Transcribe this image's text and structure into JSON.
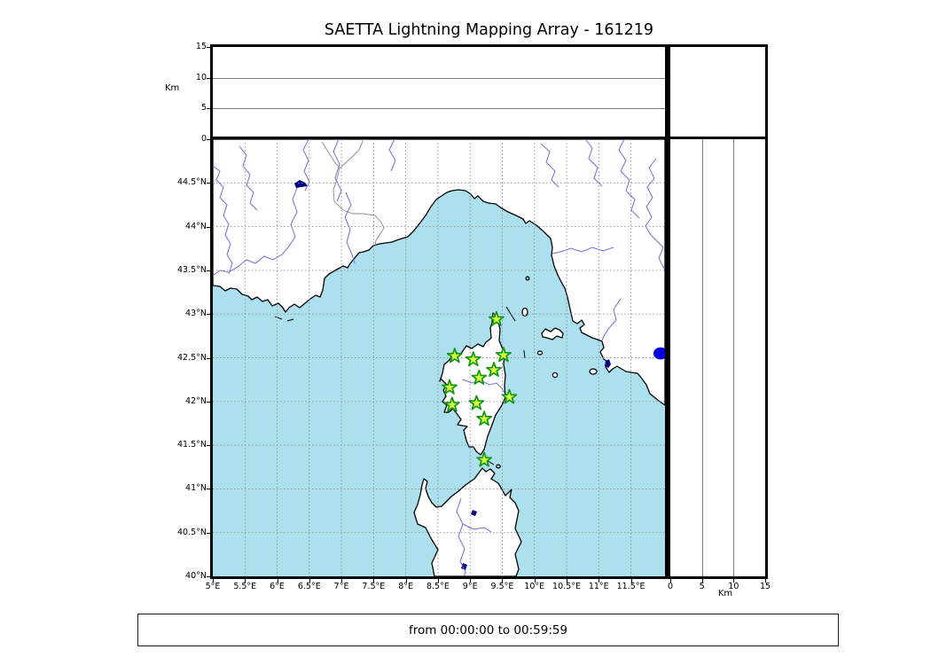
{
  "title": "SAETTA Lightning Mapping Array - 161219",
  "footer": {
    "time_range": "from 00:00:00 to 00:59:59"
  },
  "axes": {
    "altitude": {
      "label": "Km",
      "tick_labels": [
        "0",
        "5",
        "10",
        "15"
      ],
      "tick_values": [
        0,
        5,
        10,
        15
      ],
      "range": [
        0,
        15
      ],
      "gridlines_km": [
        5,
        10
      ]
    },
    "longitude": {
      "tick_labels": [
        "5°E",
        "5.5°E",
        "6°E",
        "6.5°E",
        "7°E",
        "7.5°E",
        "8°E",
        "8.5°E",
        "9°E",
        "9.5°E",
        "10°E",
        "10.5°E",
        "11°E",
        "11.5°E"
      ],
      "tick_values": [
        5,
        5.5,
        6,
        6.5,
        7,
        7.5,
        8,
        8.5,
        9,
        9.5,
        10,
        10.5,
        11,
        11.5
      ],
      "range": [
        5,
        12.03
      ]
    },
    "latitude": {
      "tick_labels": [
        "44.5°N",
        "44°N",
        "43.5°N",
        "43°N",
        "42.5°N",
        "42°N",
        "41.5°N",
        "41°N",
        "40.5°N",
        "40°N"
      ],
      "tick_values": [
        44.5,
        44,
        43.5,
        43,
        42.5,
        42,
        41.5,
        41,
        40.5,
        40
      ],
      "range": [
        40,
        45
      ]
    }
  },
  "colors": {
    "sea": "#ACE0EF",
    "land": "#FFFFFF",
    "coastline": "#000000",
    "grid": "#8C8C8C",
    "river": "#6E6EE0",
    "lake": "#000080",
    "country_border": "#8A8A8A",
    "station_fill": "#D4FF3A",
    "station_edge": "#149614",
    "source_dot": "#0000DD",
    "frame": "#000000"
  },
  "chart_data": {
    "type": "scatter",
    "title": "SAETTA Lightning Mapping Array - 161219",
    "time_window": "from 00:00:00 to 00:59:59",
    "panels": {
      "main": "map view: longitude (°E) vs latitude (°N), coastlines with sea fill, LMA stations as stars",
      "top": "altitude (Km, 0-15) vs longitude, gridlines at 5 and 10 km, empty",
      "right": "altitude (Km, 0-15) vs latitude, gridlines at 5 and 10 km",
      "corner": "empty corner panel"
    },
    "lon_range": [
      5,
      12.03
    ],
    "lat_range": [
      40,
      45
    ],
    "alt_range_km": [
      0,
      15
    ],
    "grid": true,
    "stations": [
      {
        "lon": 9.41,
        "lat": 42.94
      },
      {
        "lon": 8.76,
        "lat": 42.52
      },
      {
        "lon": 9.05,
        "lat": 42.48
      },
      {
        "lon": 9.52,
        "lat": 42.53
      },
      {
        "lon": 9.37,
        "lat": 42.36
      },
      {
        "lon": 9.14,
        "lat": 42.27
      },
      {
        "lon": 8.68,
        "lat": 42.16
      },
      {
        "lon": 9.61,
        "lat": 42.05
      },
      {
        "lon": 8.72,
        "lat": 41.96
      },
      {
        "lon": 9.1,
        "lat": 41.98
      },
      {
        "lon": 9.22,
        "lat": 41.8
      },
      {
        "lon": 9.22,
        "lat": 41.33
      }
    ],
    "sources": [
      {
        "lon": 11.96,
        "lat": 42.55,
        "alt_km": 0
      }
    ]
  }
}
